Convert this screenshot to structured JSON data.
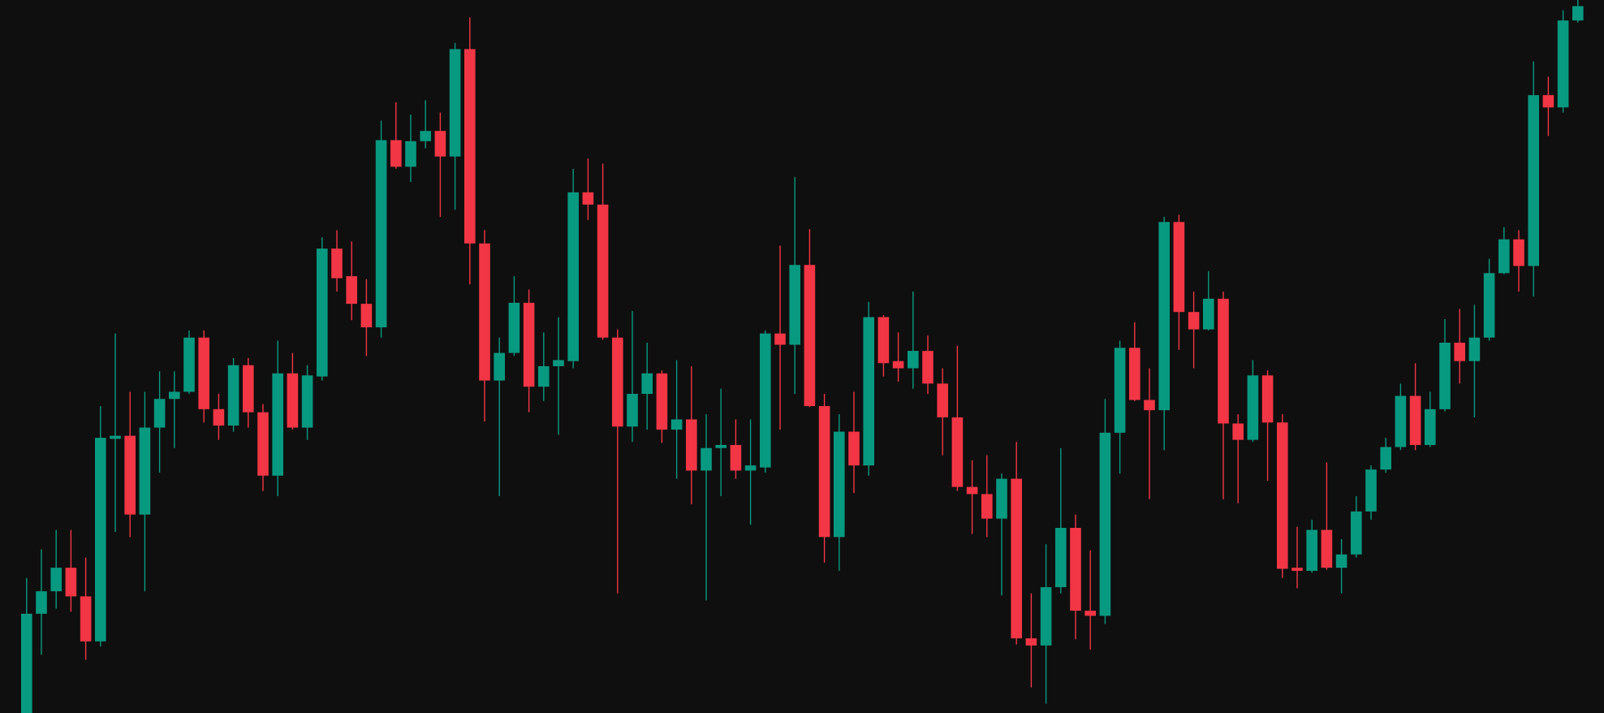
{
  "chart_data": {
    "type": "candlestick",
    "up_color": "#089981",
    "down_color": "#f23645",
    "background": "#0f0f0f",
    "ylim": [
      0,
      697
    ],
    "open": [
      0,
      97,
      119,
      142,
      114,
      70,
      268,
      271,
      194,
      279,
      307,
      314,
      367,
      297,
      281,
      340,
      294,
      232,
      332,
      279,
      329,
      454,
      427,
      400,
      377,
      560,
      534,
      559,
      569,
      544,
      649,
      459,
      325,
      352,
      401,
      319,
      339,
      344,
      509,
      497,
      367,
      280,
      312,
      332,
      277,
      287,
      237,
      259,
      262,
      237,
      240,
      371,
      360,
      438,
      300,
      172,
      275,
      242,
      387,
      344,
      337,
      354,
      322,
      289,
      221,
      214,
      190,
      229,
      73,
      66,
      123,
      181,
      100,
      95,
      274,
      357,
      306,
      296,
      480,
      392,
      375,
      405,
      283,
      267,
      330,
      284,
      142,
      139,
      179,
      142,
      155,
      197,
      238,
      260,
      310,
      262,
      297,
      362,
      344,
      367,
      430,
      463,
      437,
      604,
      592,
      677
    ],
    "high": [
      132,
      160,
      179,
      179,
      152,
      300,
      371,
      314,
      314,
      334,
      334,
      374,
      374,
      312,
      347,
      347,
      302,
      364,
      352,
      340,
      465,
      472,
      461,
      424,
      579,
      597,
      585,
      599,
      587,
      655,
      680,
      472,
      367,
      427,
      414,
      372,
      387,
      532,
      542,
      537,
      375,
      393,
      362,
      335,
      345,
      339,
      292,
      317,
      287,
      287,
      374,
      457,
      524,
      473,
      312,
      292,
      314,
      402,
      389,
      372,
      412,
      369,
      337,
      359,
      247,
      252,
      234,
      265,
      117,
      165,
      259,
      194,
      159,
      307,
      364,
      382,
      337,
      485,
      487,
      412,
      432,
      412,
      292,
      345,
      335,
      292,
      182,
      189,
      245,
      170,
      212,
      242,
      269,
      322,
      342,
      314,
      385,
      395,
      399,
      444,
      475,
      472,
      637,
      622,
      687,
      697
    ],
    "low": [
      0,
      57,
      102,
      99,
      52,
      65,
      177,
      172,
      119,
      235,
      259,
      312,
      284,
      267,
      275,
      279,
      217,
      212,
      277,
      267,
      325,
      412,
      384,
      349,
      367,
      532,
      519,
      552,
      485,
      492,
      419,
      285,
      212,
      349,
      294,
      305,
      272,
      337,
      482,
      365,
      117,
      265,
      277,
      264,
      229,
      204,
      110,
      212,
      229,
      184,
      235,
      277,
      312,
      299,
      147,
      139,
      215,
      232,
      329,
      324,
      317,
      312,
      252,
      217,
      175,
      172,
      115,
      67,
      25,
      9,
      117,
      72,
      62,
      87,
      234,
      305,
      209,
      257,
      355,
      337,
      374,
      209,
      205,
      265,
      227,
      132,
      122,
      137,
      140,
      117,
      152,
      189,
      235,
      257,
      257,
      260,
      295,
      322,
      289,
      364,
      429,
      412,
      407,
      564,
      587,
      675
    ],
    "close": [
      97,
      119,
      142,
      114,
      70,
      269,
      271,
      194,
      279,
      307,
      314,
      367,
      297,
      281,
      340,
      294,
      232,
      332,
      279,
      330,
      454,
      425,
      400,
      377,
      560,
      534,
      559,
      569,
      544,
      649,
      459,
      325,
      352,
      401,
      319,
      339,
      345,
      509,
      497,
      367,
      280,
      312,
      332,
      277,
      287,
      237,
      259,
      262,
      237,
      242,
      371,
      360,
      438,
      300,
      172,
      275,
      242,
      387,
      342,
      337,
      354,
      322,
      289,
      221,
      214,
      190,
      229,
      73,
      66,
      123,
      181,
      100,
      95,
      274,
      357,
      306,
      296,
      480,
      392,
      375,
      405,
      283,
      267,
      330,
      284,
      141,
      139,
      179,
      142,
      155,
      197,
      238,
      260,
      310,
      262,
      297,
      362,
      344,
      367,
      430,
      463,
      437,
      604,
      592,
      677,
      691
    ]
  }
}
